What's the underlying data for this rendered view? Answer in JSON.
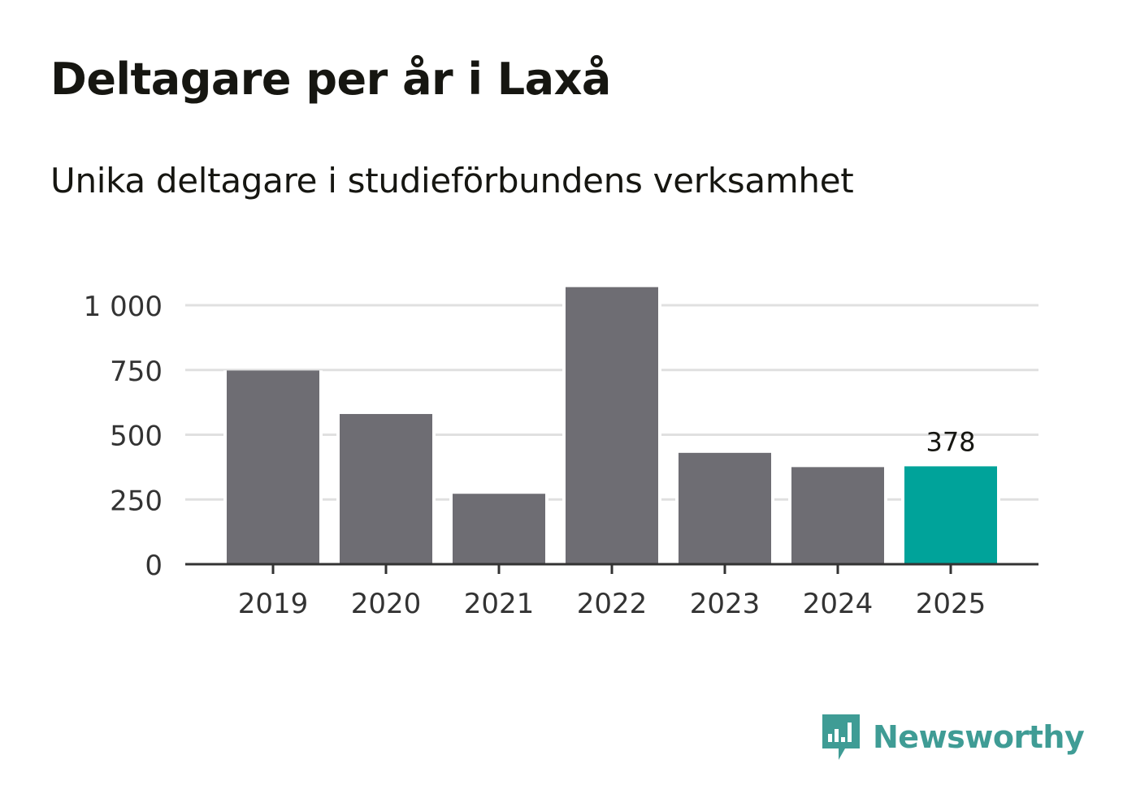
{
  "title": "Deltagare per år i Laxå",
  "subtitle": "Unika deltagare i studieförbundens verksamhet",
  "brand": {
    "name": "Newsworthy",
    "icon": "bar-chart-speech-icon",
    "color": "#3f9c95"
  },
  "colors": {
    "bar": "#6e6d73",
    "highlight": "#00a39a",
    "grid": "#e0e0e0",
    "axis": "#333333",
    "text": "#333333"
  },
  "chart_data": {
    "type": "bar",
    "title": "Deltagare per år i Laxå",
    "subtitle": "Unika deltagare i studieförbundens verksamhet",
    "xlabel": "",
    "ylabel": "",
    "categories": [
      "2019",
      "2020",
      "2021",
      "2022",
      "2023",
      "2024",
      "2025"
    ],
    "values": [
      748,
      580,
      272,
      1070,
      430,
      375,
      378
    ],
    "highlight_index": 6,
    "data_labels": [
      {
        "category": "2025",
        "text": "378"
      }
    ],
    "ylim": [
      0,
      1000
    ],
    "yticks": [
      0,
      250,
      500,
      750,
      1000
    ],
    "ytick_labels": [
      "0",
      "250",
      "500",
      "750",
      "1 000"
    ],
    "grid": true
  }
}
